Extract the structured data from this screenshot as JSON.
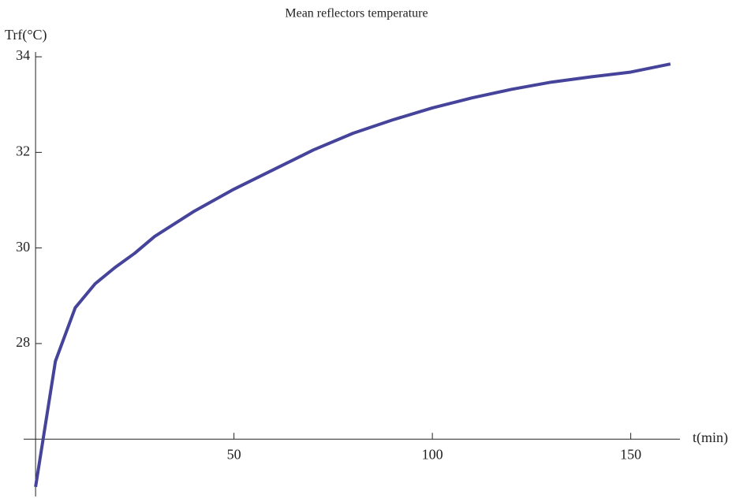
{
  "chart_data": {
    "type": "line",
    "title": "Mean reflectors temperature",
    "x_label": "t(min)",
    "y_label": "Trf(°C)",
    "x": [
      0,
      5,
      10,
      15,
      20,
      25,
      30,
      40,
      50,
      60,
      70,
      80,
      90,
      100,
      110,
      120,
      130,
      140,
      150,
      160
    ],
    "series": [
      {
        "name": "Trf",
        "color": "#45449a",
        "values": [
          25.0,
          27.63,
          28.75,
          29.25,
          29.59,
          29.89,
          30.24,
          30.77,
          31.23,
          31.64,
          32.05,
          32.4,
          32.68,
          32.93,
          33.14,
          33.32,
          33.47,
          33.58,
          33.68,
          33.85
        ]
      }
    ],
    "xlim": [
      -3,
      162.4
    ],
    "ylim": [
      24.8,
      34.1
    ],
    "xticks": [
      50,
      100,
      150
    ],
    "yticks": [
      28,
      30,
      32,
      34
    ],
    "axes_origin": [
      0,
      26
    ]
  }
}
